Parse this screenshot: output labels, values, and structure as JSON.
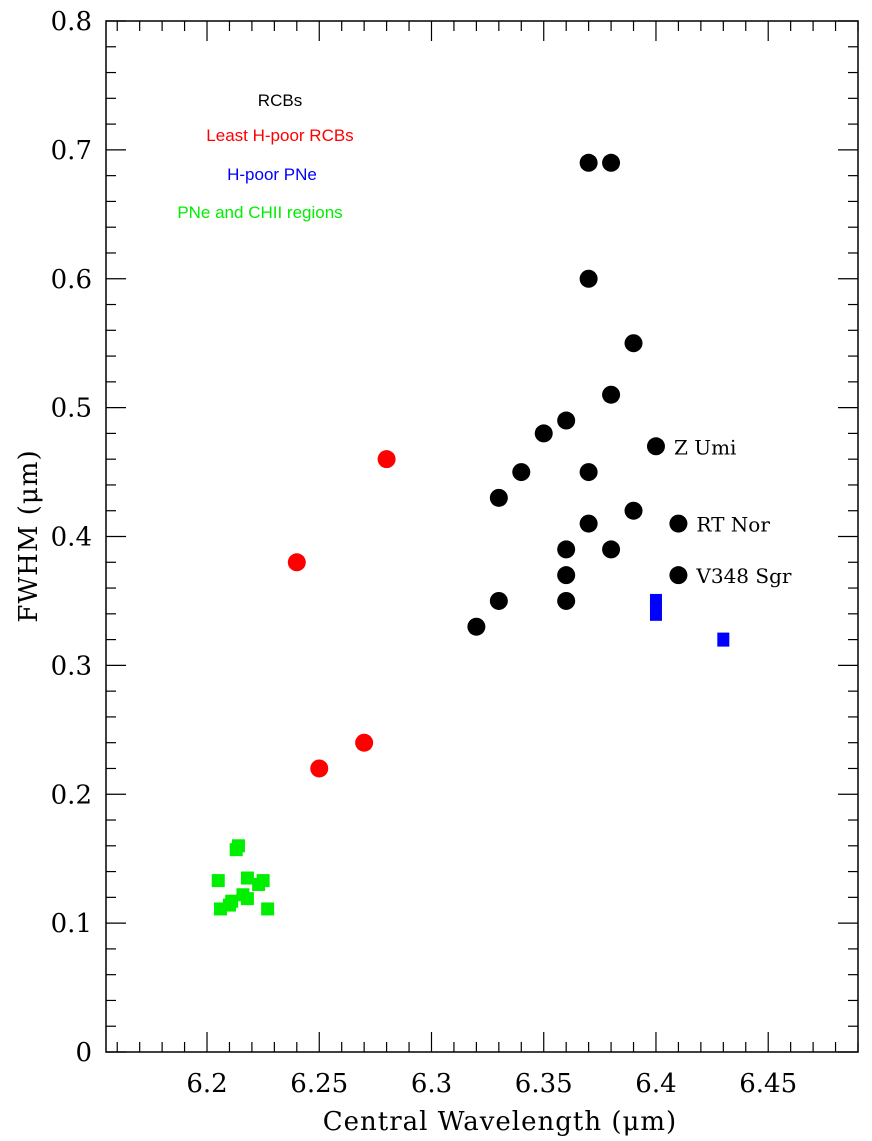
{
  "chart_data": {
    "type": "scatter",
    "title": "",
    "xlabel": "Central Wavelength (μm)",
    "ylabel": "FWHM (μm)",
    "xlim": [
      6.155,
      6.49
    ],
    "ylim": [
      0,
      0.8
    ],
    "xticks": [
      "6.2",
      "6.25",
      "6.3",
      "6.35",
      "6.4",
      "6.45"
    ],
    "yticks": [
      "0",
      "0.1",
      "0.2",
      "0.3",
      "0.4",
      "0.5",
      "0.6",
      "0.7",
      "0.8"
    ],
    "legend_position": "top-left",
    "series": [
      {
        "name": "RCBs",
        "color": "#000000",
        "marker": "circle",
        "points": [
          [
            6.37,
            0.69
          ],
          [
            6.38,
            0.69
          ],
          [
            6.37,
            0.6
          ],
          [
            6.39,
            0.55
          ],
          [
            6.38,
            0.51
          ],
          [
            6.36,
            0.49
          ],
          [
            6.35,
            0.48
          ],
          [
            6.4,
            0.47
          ],
          [
            6.34,
            0.45
          ],
          [
            6.37,
            0.45
          ],
          [
            6.33,
            0.43
          ],
          [
            6.39,
            0.42
          ],
          [
            6.37,
            0.41
          ],
          [
            6.41,
            0.41
          ],
          [
            6.36,
            0.39
          ],
          [
            6.38,
            0.39
          ],
          [
            6.36,
            0.37
          ],
          [
            6.41,
            0.37
          ],
          [
            6.33,
            0.35
          ],
          [
            6.36,
            0.35
          ],
          [
            6.32,
            0.33
          ]
        ]
      },
      {
        "name": "Least H-poor RCBs",
        "color": "#ff0000",
        "marker": "circle",
        "points": [
          [
            6.28,
            0.46
          ],
          [
            6.24,
            0.38
          ],
          [
            6.27,
            0.24
          ],
          [
            6.25,
            0.22
          ]
        ]
      },
      {
        "name": "H-poor PNe",
        "color": "#0000ff",
        "marker": "square",
        "points": [
          [
            6.4,
            0.35
          ],
          [
            6.4,
            0.34
          ],
          [
            6.43,
            0.32
          ]
        ]
      },
      {
        "name": "PNe and CHII regions",
        "color": "#00ee00",
        "marker": "square",
        "points": [
          [
            6.214,
            0.16
          ],
          [
            6.213,
            0.157
          ],
          [
            6.205,
            0.133
          ],
          [
            6.218,
            0.135
          ],
          [
            6.223,
            0.13
          ],
          [
            6.225,
            0.133
          ],
          [
            6.216,
            0.122
          ],
          [
            6.218,
            0.119
          ],
          [
            6.211,
            0.117
          ],
          [
            6.21,
            0.114
          ],
          [
            6.206,
            0.111
          ],
          [
            6.227,
            0.111
          ]
        ]
      }
    ],
    "annotations": [
      {
        "text": "Z Umi",
        "x": 6.4,
        "y": 0.47
      },
      {
        "text": "RT Nor",
        "x": 6.41,
        "y": 0.41
      },
      {
        "text": "V348 Sgr",
        "x": 6.41,
        "y": 0.37
      }
    ]
  }
}
